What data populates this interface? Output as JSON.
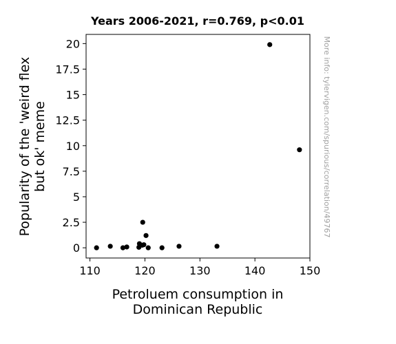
{
  "chart_data": {
    "type": "scatter",
    "title": "Years 2006-2021, r=0.769, p<0.01",
    "xlabel_lines": [
      "Petroluem consumption in",
      "Dominican Republic"
    ],
    "ylabel_lines": [
      "Popularity of the 'weird flex",
      "but ok' meme"
    ],
    "watermark": "More info: tylervigen.com/spurious/correlation/49767",
    "xlim": [
      109.3,
      150.0
    ],
    "ylim": [
      -1.0,
      20.9
    ],
    "x_ticks": [
      110,
      120,
      130,
      140,
      150
    ],
    "x_tick_labels": [
      "110",
      "120",
      "130",
      "140",
      "150"
    ],
    "y_ticks": [
      0,
      2.5,
      5,
      7.5,
      10,
      12.5,
      15,
      17.5,
      20
    ],
    "y_tick_labels": [
      "0",
      "2.5",
      "5",
      "7.5",
      "10",
      "12.5",
      "15",
      "17.5",
      "20"
    ],
    "grid": false,
    "marker_color": "#000000",
    "points": [
      {
        "x": 111.2,
        "y": 0.0
      },
      {
        "x": 113.7,
        "y": 0.15
      },
      {
        "x": 116.0,
        "y": 0.0
      },
      {
        "x": 116.7,
        "y": 0.08
      },
      {
        "x": 118.9,
        "y": 0.05
      },
      {
        "x": 119.0,
        "y": 0.4
      },
      {
        "x": 119.5,
        "y": 0.25
      },
      {
        "x": 119.6,
        "y": 2.5
      },
      {
        "x": 119.8,
        "y": 0.3
      },
      {
        "x": 120.2,
        "y": 1.2
      },
      {
        "x": 120.6,
        "y": 0.0
      },
      {
        "x": 123.1,
        "y": 0.0
      },
      {
        "x": 126.2,
        "y": 0.15
      },
      {
        "x": 133.1,
        "y": 0.15
      },
      {
        "x": 142.7,
        "y": 19.9
      },
      {
        "x": 148.1,
        "y": 9.6
      }
    ]
  }
}
